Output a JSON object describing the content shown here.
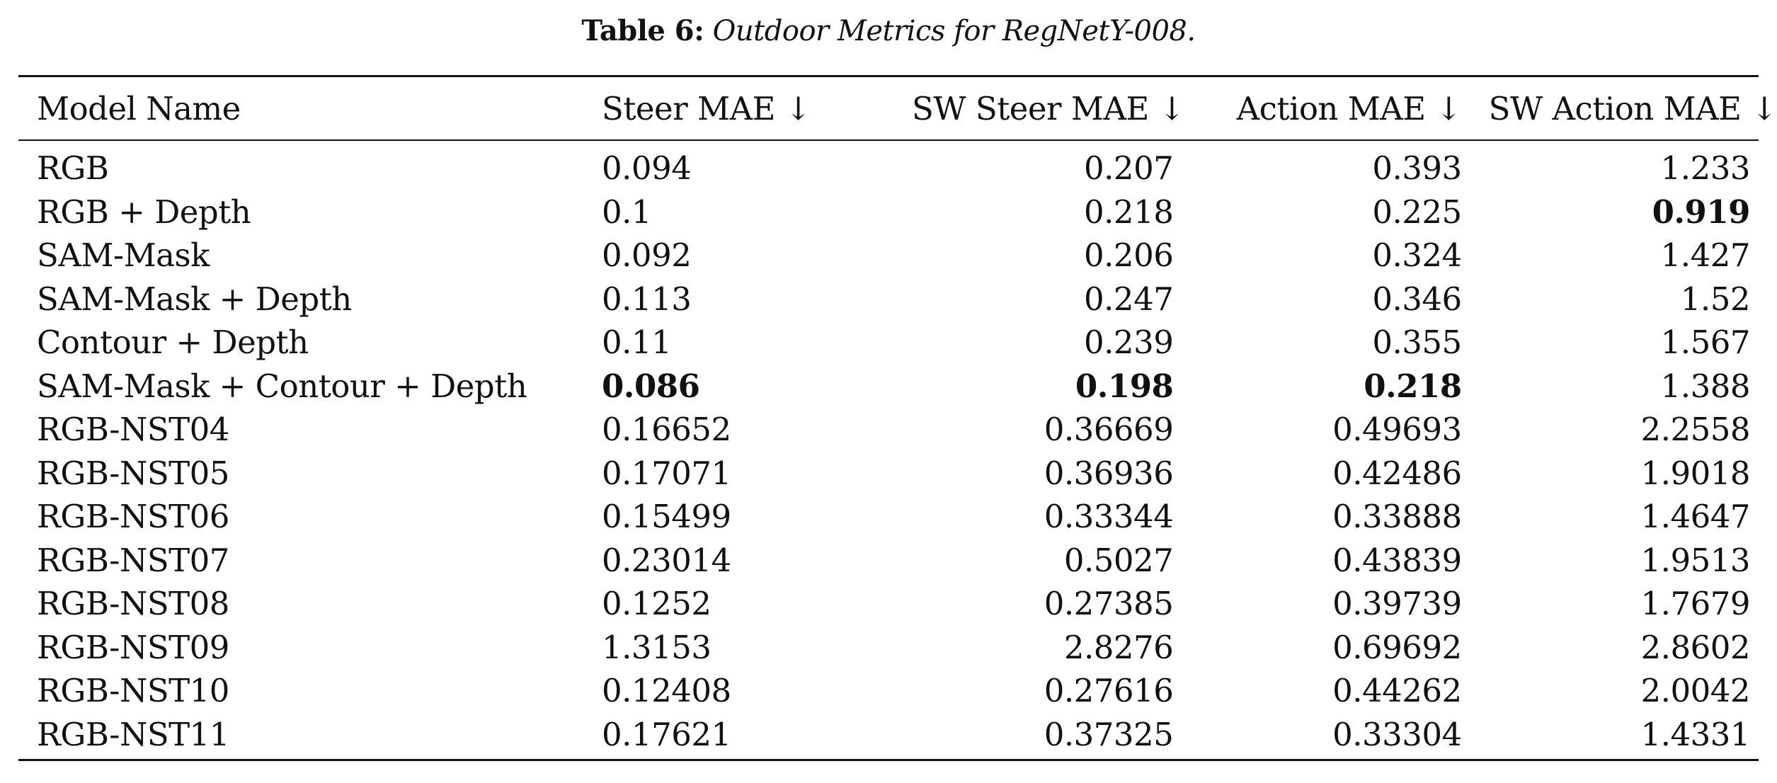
{
  "caption": {
    "label": "Table 6:",
    "text": "Outdoor Metrics for RegNetY-008."
  },
  "table": {
    "headers": [
      "Model Name",
      "Steer MAE ↓",
      "SW Steer MAE ↓",
      "Action MAE ↓",
      "SW Action MAE ↓"
    ],
    "rows": [
      [
        "RGB",
        "0.094",
        "0.207",
        "0.393",
        "1.233"
      ],
      [
        "RGB + Depth",
        "0.1",
        "0.218",
        "0.225",
        "0.919"
      ],
      [
        "SAM-Mask",
        "0.092",
        "0.206",
        "0.324",
        "1.427"
      ],
      [
        "SAM-Mask + Depth",
        "0.113",
        "0.247",
        "0.346",
        "1.52"
      ],
      [
        "Contour + Depth",
        "0.11",
        "0.239",
        "0.355",
        "1.567"
      ],
      [
        "SAM-Mask + Contour + Depth",
        "0.086",
        "0.198",
        "0.218",
        "1.388"
      ],
      [
        "RGB-NST04",
        "0.16652",
        "0.36669",
        "0.49693",
        "2.2558"
      ],
      [
        "RGB-NST05",
        "0.17071",
        "0.36936",
        "0.42486",
        "1.9018"
      ],
      [
        "RGB-NST06",
        "0.15499",
        "0.33344",
        "0.33888",
        "1.4647"
      ],
      [
        "RGB-NST07",
        "0.23014",
        "0.5027",
        "0.43839",
        "1.9513"
      ],
      [
        "RGB-NST08",
        "0.1252",
        "0.27385",
        "0.39739",
        "1.7679"
      ],
      [
        "RGB-NST09",
        "1.3153",
        "2.8276",
        "0.69692",
        "2.8602"
      ],
      [
        "RGB-NST10",
        "0.12408",
        "0.27616",
        "0.44262",
        "2.0042"
      ],
      [
        "RGB-NST11",
        "0.17621",
        "0.37325",
        "0.33304",
        "1.4331"
      ]
    ],
    "bold_cells": [
      [
        1,
        4
      ],
      [
        5,
        1
      ],
      [
        5,
        2
      ],
      [
        5,
        3
      ]
    ]
  }
}
